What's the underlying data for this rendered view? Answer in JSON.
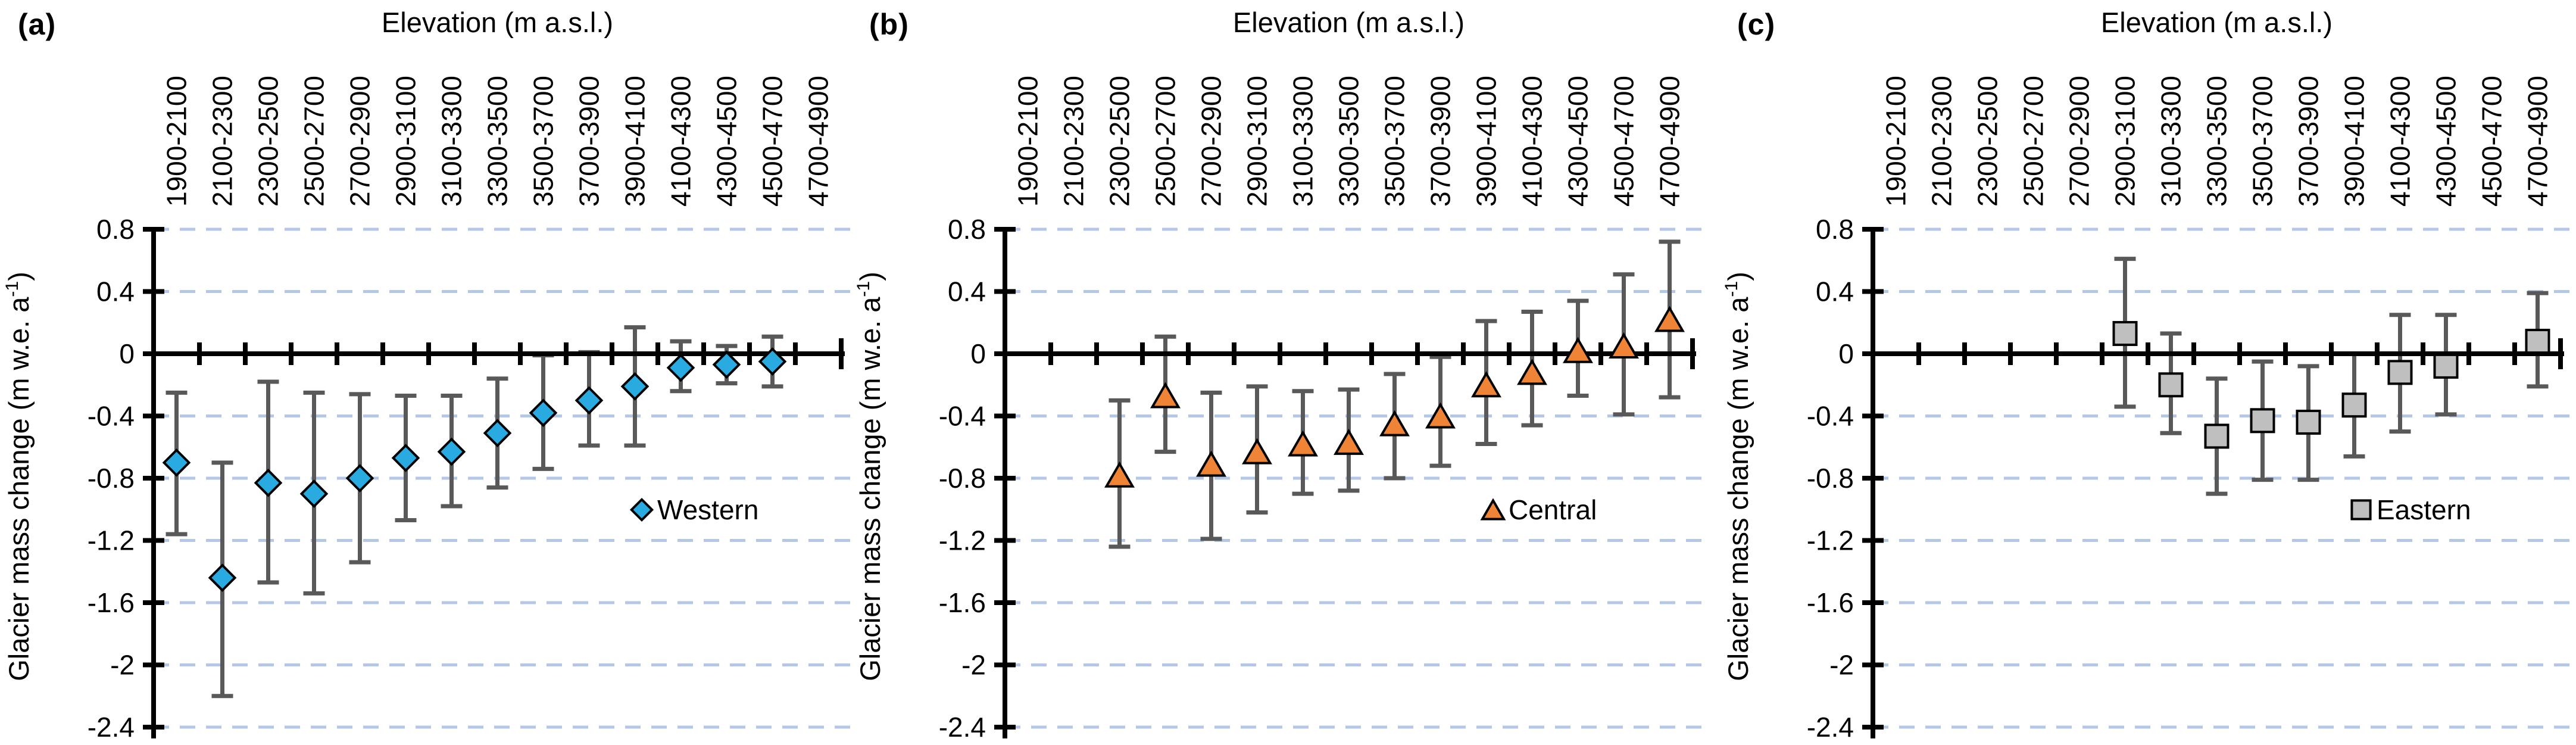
{
  "figure": {
    "background_color": "#ffffff",
    "panels": [
      {
        "panel_label": "(a)",
        "title": "Elevation (m a.s.l.)",
        "legend_label": "Western"
      },
      {
        "panel_label": "(b)",
        "title": "Elevation (m a.s.l.)",
        "legend_label": "Central"
      },
      {
        "panel_label": "(c)",
        "title": "Elevation (m a.s.l.)",
        "legend_label": "Eastern"
      }
    ],
    "y_axis": {
      "label_prefix": "Glacier mass change (m w.e. a",
      "label_superscript": "-1",
      "label_suffix": ")",
      "tick_labels": [
        "0.8",
        "0.4",
        "0",
        "-0.4",
        "-0.8",
        "-1.2",
        "-1.6",
        "-2",
        "-2.4"
      ]
    },
    "colors": {
      "western_marker": "#29ABE2",
      "central_marker": "#EF8336",
      "eastern_marker": "#BFBFBF",
      "marker_outline": "#000000",
      "error_bar": "#595959",
      "gridline": "#B4C7E7",
      "axis": "#000000"
    }
  },
  "chart_data": [
    {
      "type": "scatter",
      "panel": "(a)",
      "title": "Elevation (m a.s.l.)",
      "xlabel": "Elevation (m a.s.l.)",
      "ylabel": "Glacier mass change (m w.e. a-1)",
      "ylim": [
        -2.4,
        0.8
      ],
      "yticks": [
        0.8,
        0.4,
        0,
        -0.4,
        -0.8,
        -1.2,
        -1.6,
        -2,
        -2.4
      ],
      "grid": "horizontal-dashed",
      "legend_position": "inside-right-lower",
      "categories": [
        "1900-2100",
        "2100-2300",
        "2300-2500",
        "2500-2700",
        "2700-2900",
        "2900-3100",
        "3100-3300",
        "3300-3500",
        "3500-3700",
        "3700-3900",
        "3900-4100",
        "4100-4300",
        "4300-4500",
        "4500-4700",
        "4700-4900"
      ],
      "series": [
        {
          "name": "Western",
          "marker": "diamond",
          "color": "#29ABE2",
          "values": [
            -0.7,
            -1.44,
            -0.83,
            -0.9,
            -0.8,
            -0.67,
            -0.63,
            -0.51,
            -0.38,
            -0.3,
            -0.21,
            -0.09,
            -0.07,
            -0.05,
            null
          ],
          "err_upper": [
            -0.25,
            -0.7,
            -0.18,
            -0.25,
            -0.26,
            -0.27,
            -0.27,
            -0.16,
            -0.01,
            0.01,
            0.17,
            0.08,
            0.05,
            0.11,
            null
          ],
          "err_lower": [
            -1.16,
            -2.2,
            -1.47,
            -1.54,
            -1.34,
            -1.07,
            -0.98,
            -0.86,
            -0.74,
            -0.59,
            -0.59,
            -0.24,
            -0.19,
            -0.21,
            null
          ]
        }
      ]
    },
    {
      "type": "scatter",
      "panel": "(b)",
      "title": "Elevation (m a.s.l.)",
      "xlabel": "Elevation (m a.s.l.)",
      "ylabel": "Glacier mass change (m w.e. a-1)",
      "ylim": [
        -2.4,
        0.8
      ],
      "yticks": [
        0.8,
        0.4,
        0,
        -0.4,
        -0.8,
        -1.2,
        -1.6,
        -2,
        -2.4
      ],
      "grid": "horizontal-dashed",
      "legend_position": "inside-right-lower",
      "categories": [
        "1900-2100",
        "2100-2300",
        "2300-2500",
        "2500-2700",
        "2700-2900",
        "2900-3100",
        "3100-3300",
        "3300-3500",
        "3500-3700",
        "3700-3900",
        "3900-4100",
        "4100-4300",
        "4300-4500",
        "4500-4700",
        "4700-4900"
      ],
      "series": [
        {
          "name": "Central",
          "marker": "triangle",
          "color": "#EF8336",
          "values": [
            null,
            null,
            -0.78,
            -0.27,
            -0.71,
            -0.63,
            -0.58,
            -0.57,
            -0.45,
            -0.4,
            -0.2,
            -0.12,
            0.02,
            0.05,
            0.22
          ],
          "err_upper": [
            null,
            null,
            -0.3,
            0.11,
            -0.25,
            -0.21,
            -0.24,
            -0.23,
            -0.13,
            -0.02,
            0.21,
            0.27,
            0.34,
            0.51,
            0.72
          ],
          "err_lower": [
            null,
            null,
            -1.24,
            -0.63,
            -1.19,
            -1.02,
            -0.9,
            -0.88,
            -0.8,
            -0.72,
            -0.58,
            -0.46,
            -0.27,
            -0.39,
            -0.28
          ]
        }
      ]
    },
    {
      "type": "scatter",
      "panel": "(c)",
      "title": "Elevation (m a.s.l.)",
      "xlabel": "Elevation (m a.s.l.)",
      "ylabel": "Glacier mass change (m w.e. a-1)",
      "ylim": [
        -2.4,
        0.8
      ],
      "yticks": [
        0.8,
        0.4,
        0,
        -0.4,
        -0.8,
        -1.2,
        -1.6,
        -2,
        -2.4
      ],
      "grid": "horizontal-dashed",
      "legend_position": "inside-right-lower",
      "categories": [
        "1900-2100",
        "2100-2300",
        "2300-2500",
        "2500-2700",
        "2700-2900",
        "2900-3100",
        "3100-3300",
        "3300-3500",
        "3500-3700",
        "3700-3900",
        "3900-4100",
        "4100-4300",
        "4300-4500",
        "4500-4700",
        "4700-4900"
      ],
      "series": [
        {
          "name": "Eastern",
          "marker": "square",
          "color": "#BFBFBF",
          "values": [
            null,
            null,
            null,
            null,
            null,
            0.13,
            -0.2,
            -0.53,
            -0.43,
            -0.44,
            -0.33,
            -0.12,
            -0.08,
            null,
            0.08
          ],
          "err_upper": [
            null,
            null,
            null,
            null,
            null,
            0.61,
            0.13,
            -0.16,
            -0.05,
            -0.08,
            0.0,
            0.25,
            0.25,
            null,
            0.39
          ],
          "err_lower": [
            null,
            null,
            null,
            null,
            null,
            -0.34,
            -0.51,
            -0.9,
            -0.81,
            -0.81,
            -0.66,
            -0.5,
            -0.39,
            null,
            -0.21
          ]
        }
      ]
    }
  ]
}
